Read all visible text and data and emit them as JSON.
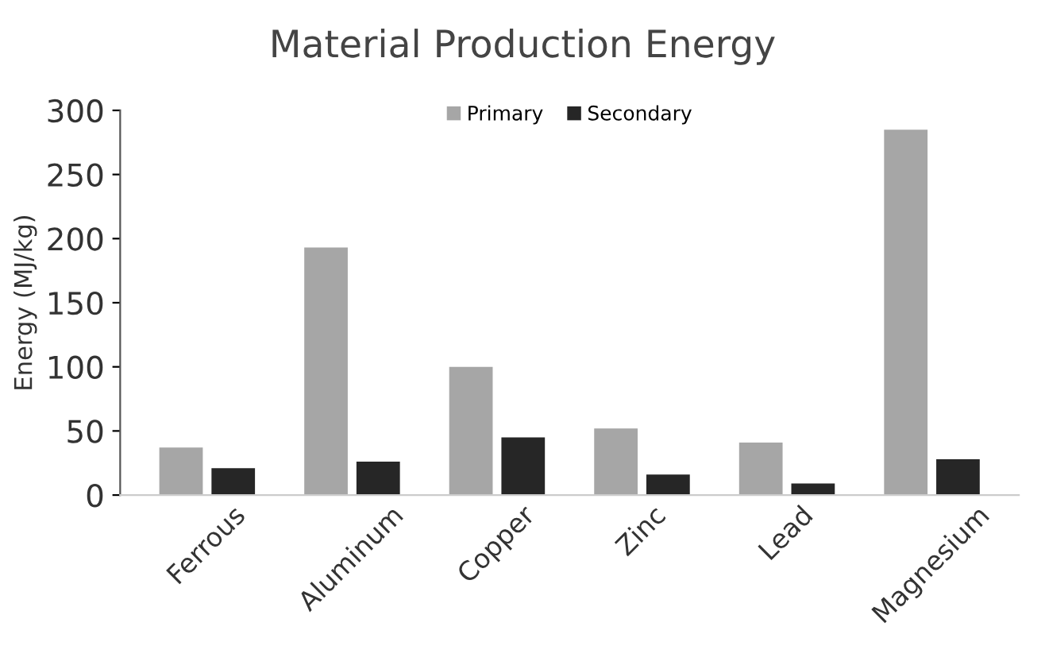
{
  "chart_data": {
    "type": "bar",
    "title": "Material Production Energy",
    "ylabel": "Energy (MJ/kg)",
    "categories": [
      "Ferrous",
      "Aluminum",
      "Copper",
      "Zinc",
      "Lead",
      "Magnesium"
    ],
    "series": [
      {
        "name": "Primary",
        "color": "#a6a6a6",
        "values": [
          37,
          193,
          100,
          52,
          41,
          285
        ]
      },
      {
        "name": "Secondary",
        "color": "#262626",
        "values": [
          21,
          26,
          45,
          16,
          9,
          28
        ]
      }
    ],
    "ylim": [
      0,
      300
    ],
    "yticks": [
      0,
      50,
      100,
      150,
      200,
      250,
      300
    ],
    "grid": false,
    "legend": "top"
  }
}
